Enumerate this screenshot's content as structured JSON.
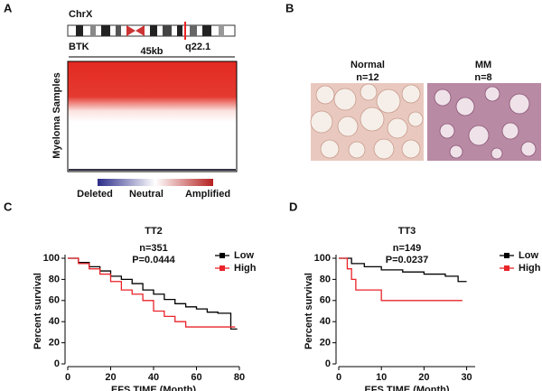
{
  "panels": {
    "a": {
      "label": "A",
      "chromosome": "ChrX",
      "gene": "BTK",
      "band": "q22.1",
      "span": "45kb",
      "ylabel": "Myeloma Samples",
      "colorbar": [
        "Deleted",
        "Neutral",
        "Amplified"
      ]
    },
    "b": {
      "label": "B",
      "groups": [
        {
          "name": "Normal",
          "n": "n=12"
        },
        {
          "name": "MM",
          "n": "n=8"
        }
      ]
    },
    "c": {
      "label": "C"
    },
    "d": {
      "label": "D"
    }
  },
  "chart_data": [
    {
      "type": "line",
      "title": "TT2",
      "annotations": [
        "n=351",
        "P=0.0444"
      ],
      "xlabel": "EFS TIME (Month)",
      "ylabel": "Percent survival",
      "xlim": [
        0,
        80
      ],
      "xticks": [
        0,
        20,
        40,
        60,
        80
      ],
      "ylim": [
        0,
        100
      ],
      "yticks": [
        0,
        20,
        40,
        60,
        80,
        100
      ],
      "series": [
        {
          "name": "Low",
          "color": "#000000",
          "x": [
            0,
            5,
            5,
            10,
            10,
            15,
            15,
            20,
            20,
            25,
            25,
            30,
            30,
            35,
            35,
            40,
            40,
            45,
            45,
            50,
            50,
            55,
            55,
            60,
            60,
            65,
            65,
            70,
            70,
            76,
            76,
            79
          ],
          "values": [
            100,
            100,
            96,
            96,
            92,
            92,
            88,
            88,
            83,
            83,
            80,
            80,
            76,
            76,
            70,
            70,
            66,
            66,
            61,
            61,
            57,
            57,
            54,
            54,
            52,
            52,
            49,
            49,
            48,
            48,
            33,
            33
          ]
        },
        {
          "name": "High",
          "color": "#e8242a",
          "x": [
            0,
            5,
            5,
            10,
            10,
            15,
            15,
            20,
            20,
            25,
            25,
            30,
            30,
            35,
            35,
            40,
            40,
            45,
            45,
            50,
            50,
            55,
            55,
            78
          ],
          "values": [
            100,
            100,
            95,
            95,
            90,
            90,
            85,
            85,
            78,
            78,
            70,
            70,
            66,
            66,
            60,
            60,
            50,
            50,
            45,
            45,
            40,
            40,
            35,
            35
          ]
        }
      ]
    },
    {
      "type": "line",
      "title": "TT3",
      "annotations": [
        "n=149",
        "P=0.0237"
      ],
      "xlabel": "EFS TIME (Month)",
      "ylabel": "Percent survival",
      "xlim": [
        0,
        32
      ],
      "xticks": [
        0,
        10,
        20,
        30
      ],
      "ylim": [
        0,
        100
      ],
      "yticks": [
        0,
        20,
        40,
        60,
        80,
        100
      ],
      "series": [
        {
          "name": "Low",
          "color": "#000000",
          "x": [
            0,
            3,
            3,
            6,
            6,
            10,
            10,
            15,
            15,
            20,
            20,
            25,
            25,
            28,
            28,
            30
          ],
          "values": [
            100,
            100,
            95,
            95,
            92,
            92,
            89,
            89,
            87,
            87,
            85,
            85,
            83,
            83,
            78,
            78
          ]
        },
        {
          "name": "High",
          "color": "#e8242a",
          "x": [
            0,
            2,
            2,
            3,
            3,
            4,
            4,
            10,
            10,
            29
          ],
          "values": [
            100,
            100,
            90,
            90,
            80,
            80,
            70,
            70,
            60,
            60
          ]
        }
      ]
    }
  ]
}
